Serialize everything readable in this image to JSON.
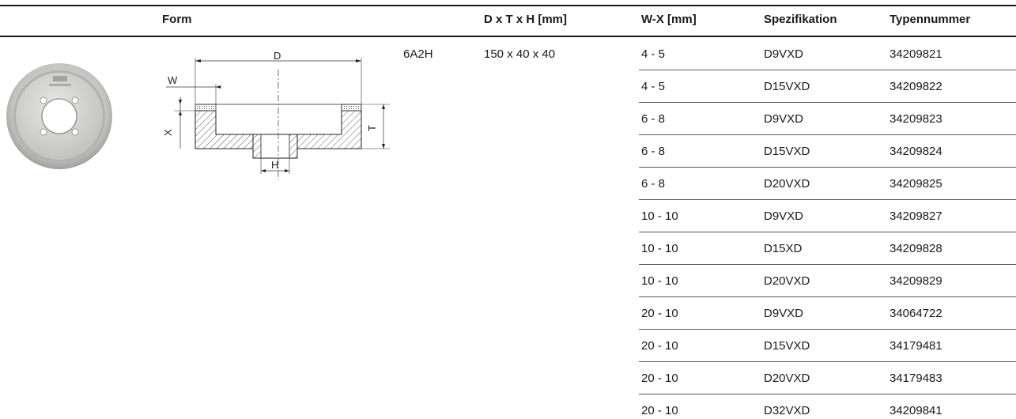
{
  "table": {
    "headers": {
      "form": "Form",
      "dimensions": "D x T x H [mm]",
      "wx": "W-X [mm]",
      "spec": "Spezifikation",
      "type_number": "Typennummer"
    },
    "form_code": "6A2H",
    "dimensions": "150 x 40 x 40",
    "rows": [
      {
        "wx": "4 - 5",
        "spec": "D9VXD",
        "type_number": "34209821"
      },
      {
        "wx": "4 - 5",
        "spec": "D15VXD",
        "type_number": "34209822"
      },
      {
        "wx": "6 - 8",
        "spec": "D9VXD",
        "type_number": "34209823"
      },
      {
        "wx": "6 - 8",
        "spec": "D15VXD",
        "type_number": "34209824"
      },
      {
        "wx": "6 - 8",
        "spec": "D20VXD",
        "type_number": "34209825"
      },
      {
        "wx": "10 - 10",
        "spec": "D9VXD",
        "type_number": "34209827"
      },
      {
        "wx": "10 - 10",
        "spec": "D15XD",
        "type_number": "34209828"
      },
      {
        "wx": "10 - 10",
        "spec": "D20VXD",
        "type_number": "34209829"
      },
      {
        "wx": "20 - 10",
        "spec": "D9VXD",
        "type_number": "34064722"
      },
      {
        "wx": "20 - 10",
        "spec": "D15VXD",
        "type_number": "34179481"
      },
      {
        "wx": "20 - 10",
        "spec": "D20VXD",
        "type_number": "34179483"
      },
      {
        "wx": "20 - 10",
        "spec": "D32VXD",
        "type_number": "34209841"
      }
    ]
  },
  "drawing": {
    "labels": {
      "d": "D",
      "w": "W",
      "x": "X",
      "t": "T",
      "h": "H"
    }
  },
  "colors": {
    "text": "#1a1a1a",
    "rule": "#5a5a5a",
    "wheel_rim": "#b9bab7",
    "wheel_face": "#d6d7d4"
  }
}
